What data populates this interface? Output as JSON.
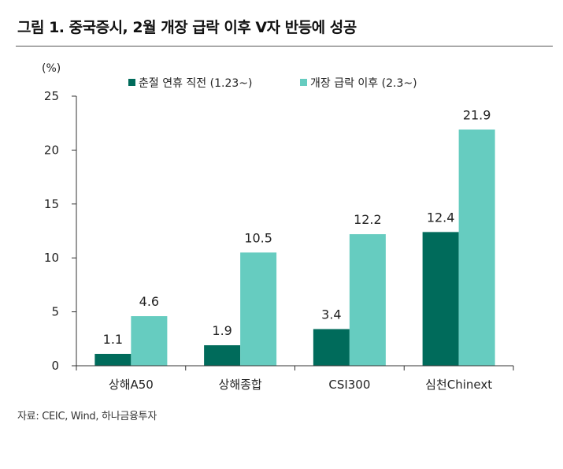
{
  "figure": {
    "title": "그림 1. 중국증시, 2월 개장 급락 이후 V자 반등에 성공",
    "source": "자료: CEIC, Wind, 하나금융투자"
  },
  "chart_data": {
    "type": "bar",
    "title": "그림 1. 중국증시, 2월 개장 급락 이후 V자 반등에 성공",
    "ylabel": "(%)",
    "xlabel": "",
    "ylim": [
      0,
      25
    ],
    "yticks": [
      0,
      5,
      10,
      15,
      20,
      25
    ],
    "grid": false,
    "legend_position": "top",
    "categories": [
      "상해A50",
      "상해종합",
      "CSI300",
      "심천Chinext"
    ],
    "series": [
      {
        "name": "춘절 연휴 직전 (1.23~)",
        "values": [
          1.1,
          1.9,
          3.4,
          12.4
        ],
        "labels": [
          "1.1",
          "1.9",
          "3.4",
          "12.4"
        ],
        "color": "#006b5b"
      },
      {
        "name": "개장 급락 이후 (2.3~)",
        "values": [
          4.6,
          10.5,
          12.2,
          21.9
        ],
        "labels": [
          "4.6",
          "10.5",
          "12.2",
          "21.9"
        ],
        "color": "#66ccc0"
      }
    ]
  }
}
